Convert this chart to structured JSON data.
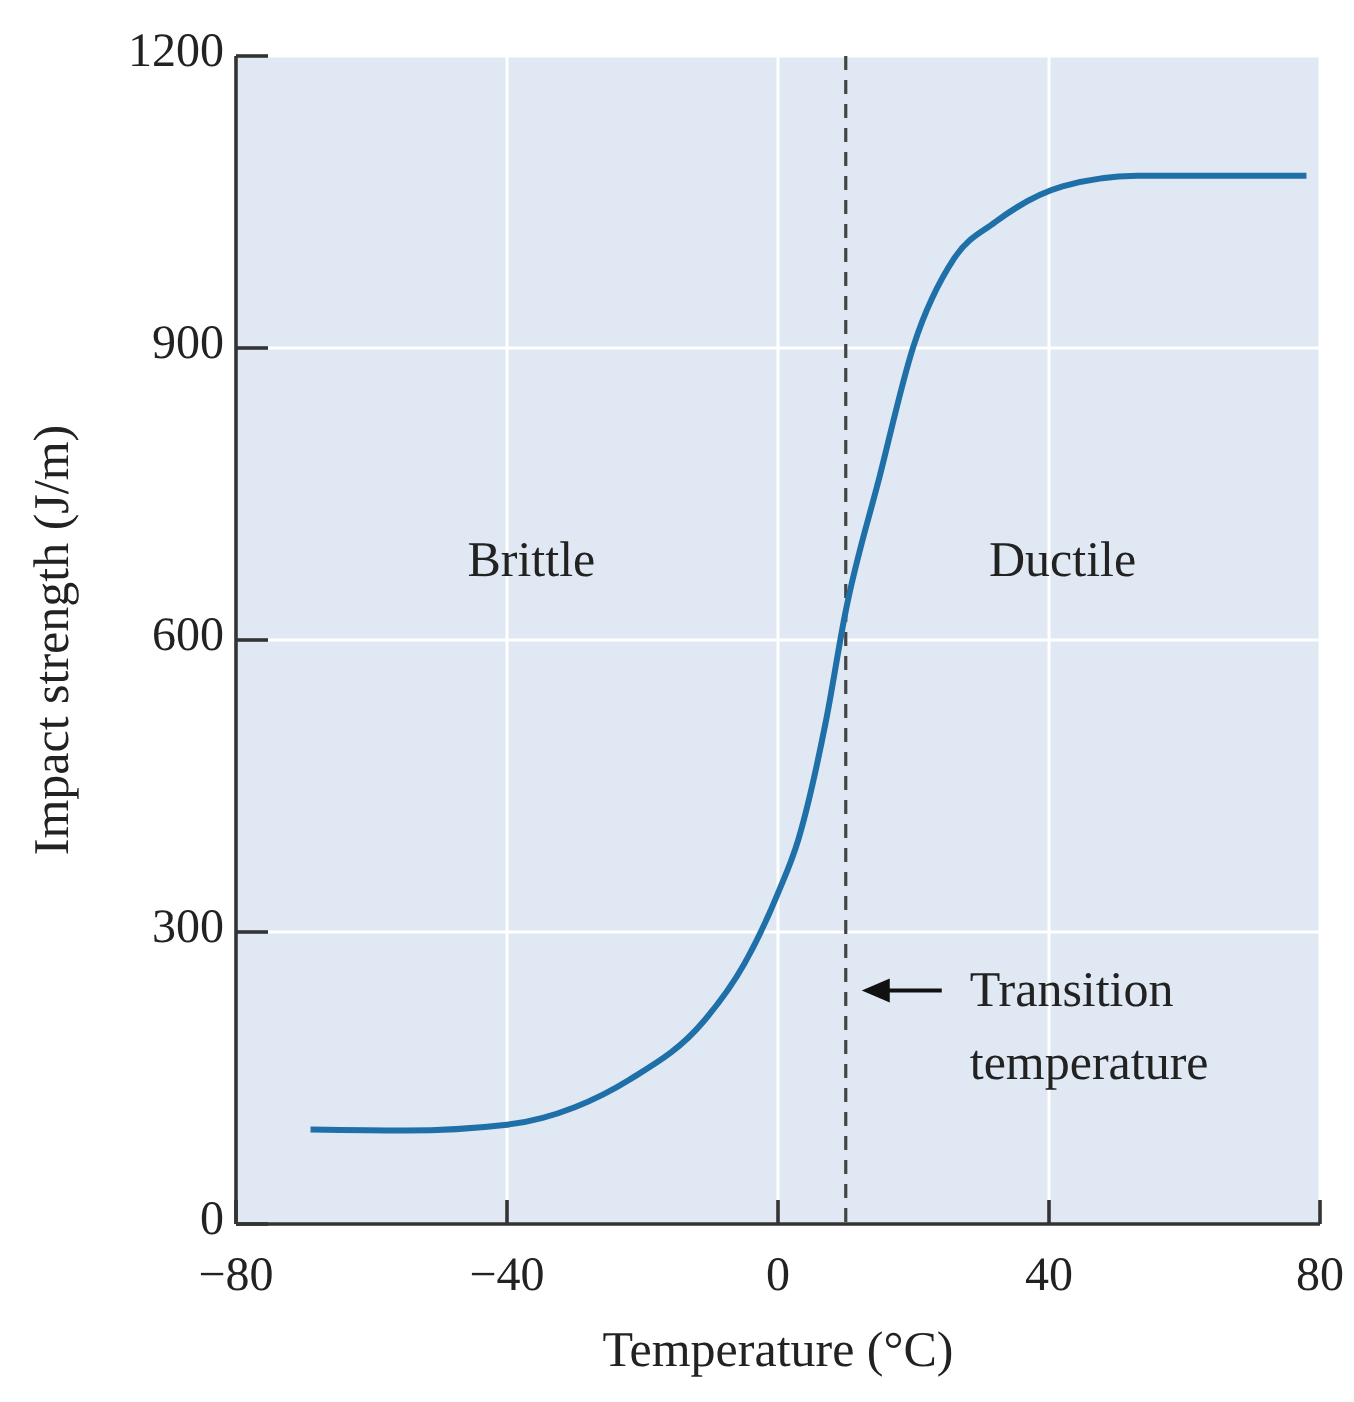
{
  "chart_data": {
    "type": "line",
    "xlabel": "Temperature (°C)",
    "ylabel": "Impact strength (J/m)",
    "xlim": [
      -80,
      80
    ],
    "xticks": [
      {
        "value": -80,
        "label": "−80"
      },
      {
        "value": -40,
        "label": "−40"
      },
      0,
      40,
      80
    ],
    "ylim": [
      0,
      1200
    ],
    "yticks": [
      0,
      300,
      600,
      900,
      1200
    ],
    "grid": true,
    "marker": "none",
    "line_style": "solid",
    "series": [
      {
        "color": "#1f6fa8",
        "x": [
          -69,
          -55,
          -40,
          -30,
          -22,
          -11,
          -5,
          0,
          3,
          7,
          10,
          15,
          20,
          26,
          32,
          42,
          53,
          78
        ],
        "values": [
          97,
          96,
          102,
          120,
          148,
          208,
          267,
          340,
          395,
          514,
          630,
          768,
          902,
          992,
          1029,
          1066,
          1077,
          1077
        ]
      }
    ],
    "ref_lines": [
      {
        "axis": "x",
        "value": 10,
        "label": "Transition temperature",
        "color": "#444444",
        "line_style": "dashed"
      }
    ],
    "annotations": [
      "Brittle",
      "Ductile"
    ]
  }
}
